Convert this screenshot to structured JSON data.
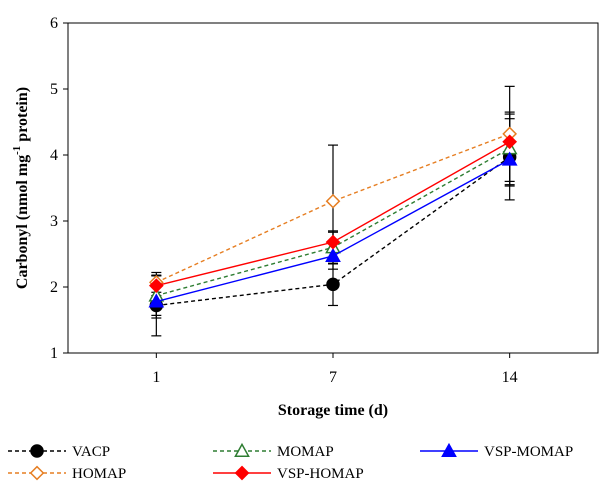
{
  "chart_data": {
    "type": "line",
    "title": "",
    "xlabel": "Storage time (d)",
    "ylabel": {
      "prefix": "Carbonyl (nmol mg",
      "superscript": "-1",
      "suffix": " protein)"
    },
    "categories": [
      "1",
      "7",
      "14"
    ],
    "ylim": [
      1,
      6
    ],
    "yticks": [
      "1",
      "2",
      "3",
      "4",
      "5",
      "6"
    ],
    "grid": false,
    "legend_position": "bottom",
    "series": [
      {
        "name": "VACP",
        "values": [
          1.72,
          2.04,
          3.97
        ],
        "errors": [
          0.46,
          0.32,
          0.65
        ],
        "color": "#000000",
        "line_style": "dashed",
        "marker": "circle-filled"
      },
      {
        "name": "MOMAP",
        "values": [
          1.87,
          2.6,
          4.1
        ],
        "errors": [
          0.3,
          0.25,
          0.55
        ],
        "color": "#2e7d32",
        "line_style": "dashed",
        "marker": "triangle-open"
      },
      {
        "name": "VSP-MOMAP",
        "values": [
          1.78,
          2.47,
          3.93
        ],
        "errors": [
          0.25,
          0.2,
          0.4
        ],
        "color": "#0000ff",
        "line_style": "solid",
        "marker": "triangle-filled"
      },
      {
        "name": "HOMAP",
        "values": [
          2.07,
          3.3,
          4.32
        ],
        "errors": [
          0.15,
          0.85,
          0.72
        ],
        "color": "#e67e22",
        "line_style": "dashed",
        "marker": "diamond-open"
      },
      {
        "name": "VSP-HOMAP",
        "values": [
          2.02,
          2.68,
          4.2
        ],
        "errors": [
          0.15,
          0.15,
          0.35
        ],
        "color": "#ff0000",
        "line_style": "solid",
        "marker": "diamond-filled"
      }
    ]
  }
}
